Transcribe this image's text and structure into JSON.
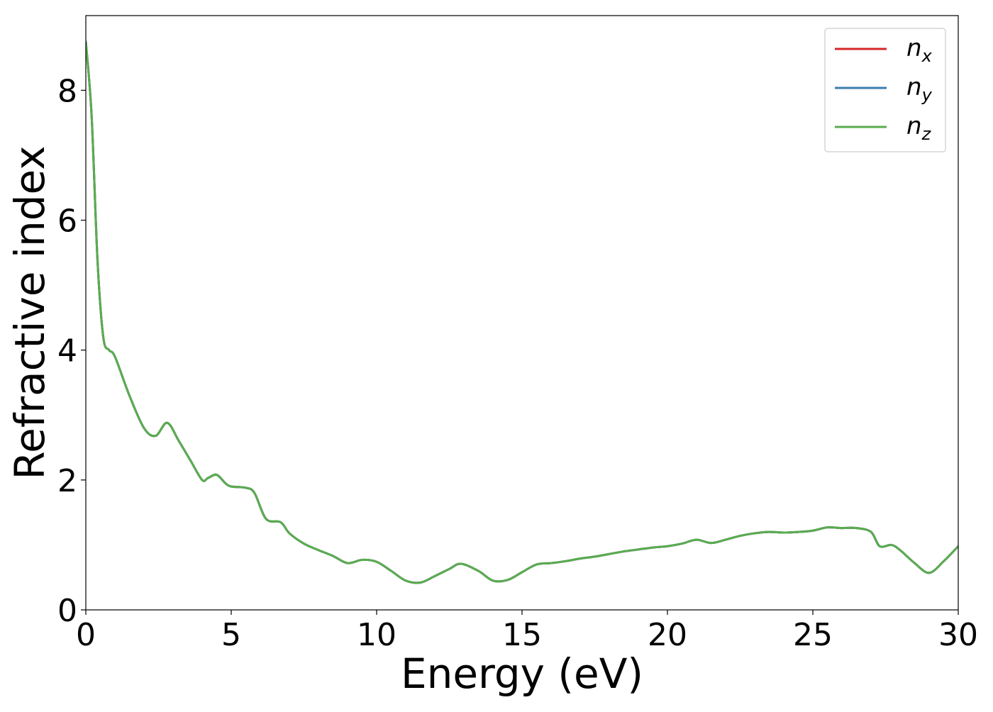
{
  "chart_data": {
    "type": "line",
    "title": "",
    "xlabel": "Energy (eV)",
    "ylabel": "Refractive index",
    "xlim": [
      0,
      30
    ],
    "ylim": [
      0,
      9.15
    ],
    "xticks": [
      0,
      5,
      10,
      15,
      20,
      25,
      30
    ],
    "xtick_labels": [
      "0",
      "5",
      "10",
      "15",
      "20",
      "25",
      "30"
    ],
    "yticks": [
      0,
      2,
      4,
      6,
      8
    ],
    "ytick_labels": [
      "0",
      "2",
      "4",
      "6",
      "8"
    ],
    "grid": false,
    "legend": {
      "placement": "top-right"
    },
    "x": [
      0,
      0.2,
      0.4,
      0.6,
      0.8,
      1.0,
      1.5,
      2.0,
      2.4,
      2.8,
      3.2,
      3.6,
      4.0,
      4.2,
      4.5,
      4.8,
      5.0,
      5.5,
      5.8,
      6.2,
      6.7,
      7.0,
      7.5,
      8.0,
      8.5,
      9.0,
      9.5,
      10.0,
      10.5,
      11.0,
      11.5,
      12.0,
      12.5,
      12.9,
      13.5,
      14.0,
      14.5,
      15.0,
      15.5,
      16.0,
      16.5,
      17.0,
      17.5,
      18.0,
      18.5,
      19.0,
      19.5,
      20.0,
      20.5,
      21.0,
      21.5,
      22.0,
      22.5,
      23.0,
      23.5,
      24.0,
      24.5,
      25.0,
      25.5,
      26.0,
      26.5,
      27.0,
      27.3,
      27.7,
      28.0,
      28.5,
      29.0,
      29.5,
      30.0
    ],
    "series": [
      {
        "name": "n_x",
        "color": "#d62728",
        "values": [
          8.75,
          7.6,
          5.4,
          4.2,
          4.0,
          3.9,
          3.3,
          2.8,
          2.68,
          2.88,
          2.6,
          2.3,
          2.0,
          2.03,
          2.08,
          1.95,
          1.9,
          1.88,
          1.8,
          1.4,
          1.35,
          1.18,
          1.02,
          0.92,
          0.83,
          0.72,
          0.77,
          0.74,
          0.6,
          0.45,
          0.42,
          0.52,
          0.63,
          0.71,
          0.6,
          0.45,
          0.46,
          0.58,
          0.7,
          0.72,
          0.75,
          0.79,
          0.82,
          0.86,
          0.9,
          0.93,
          0.96,
          0.98,
          1.02,
          1.08,
          1.03,
          1.08,
          1.14,
          1.18,
          1.2,
          1.19,
          1.2,
          1.22,
          1.27,
          1.26,
          1.26,
          1.2,
          0.98,
          1.0,
          0.92,
          0.72,
          0.57,
          0.75,
          0.98
        ]
      },
      {
        "name": "n_y",
        "color": "#1f77b4",
        "values": [
          8.75,
          7.6,
          5.4,
          4.2,
          4.0,
          3.9,
          3.3,
          2.8,
          2.68,
          2.88,
          2.6,
          2.3,
          2.0,
          2.03,
          2.08,
          1.95,
          1.9,
          1.88,
          1.8,
          1.4,
          1.35,
          1.18,
          1.02,
          0.92,
          0.83,
          0.72,
          0.77,
          0.74,
          0.6,
          0.45,
          0.42,
          0.52,
          0.63,
          0.71,
          0.6,
          0.45,
          0.46,
          0.58,
          0.7,
          0.72,
          0.75,
          0.79,
          0.82,
          0.86,
          0.9,
          0.93,
          0.96,
          0.98,
          1.02,
          1.08,
          1.03,
          1.08,
          1.14,
          1.18,
          1.2,
          1.19,
          1.2,
          1.22,
          1.27,
          1.26,
          1.26,
          1.2,
          0.98,
          1.0,
          0.92,
          0.72,
          0.57,
          0.75,
          0.98
        ]
      },
      {
        "name": "n_z",
        "color": "#5aac4f",
        "values": [
          8.75,
          7.6,
          5.4,
          4.2,
          4.0,
          3.9,
          3.3,
          2.8,
          2.68,
          2.88,
          2.6,
          2.3,
          2.0,
          2.03,
          2.08,
          1.95,
          1.9,
          1.88,
          1.8,
          1.4,
          1.35,
          1.18,
          1.02,
          0.92,
          0.83,
          0.72,
          0.77,
          0.74,
          0.6,
          0.45,
          0.42,
          0.52,
          0.63,
          0.71,
          0.6,
          0.45,
          0.46,
          0.58,
          0.7,
          0.72,
          0.75,
          0.79,
          0.82,
          0.86,
          0.9,
          0.93,
          0.96,
          0.98,
          1.02,
          1.08,
          1.03,
          1.08,
          1.14,
          1.18,
          1.2,
          1.19,
          1.2,
          1.22,
          1.27,
          1.26,
          1.26,
          1.2,
          0.98,
          1.0,
          0.92,
          0.72,
          0.57,
          0.75,
          0.98
        ]
      }
    ],
    "legend_entries": [
      {
        "base": "n",
        "sub": "x",
        "color": "#d62728"
      },
      {
        "base": "n",
        "sub": "y",
        "color": "#3a7dae"
      },
      {
        "base": "n",
        "sub": "z",
        "color": "#5aac4f"
      }
    ]
  }
}
